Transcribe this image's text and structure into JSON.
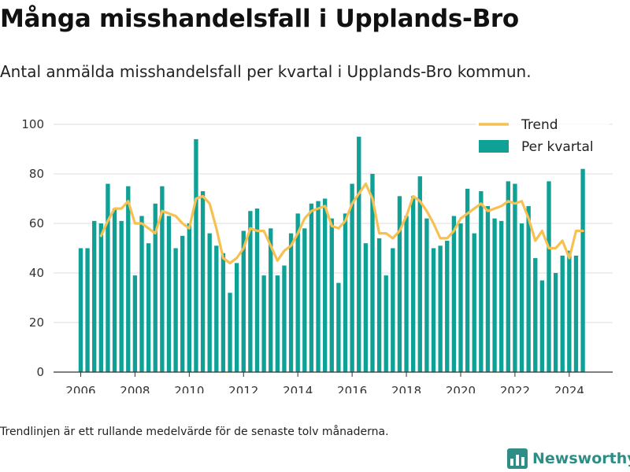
{
  "title": "Många misshandelsfall i Upplands-Bro",
  "subtitle": "Antal anmälda misshandelsfall per kvartal i Upplands-Bro kommun.",
  "footnote": "Trendlinjen är ett rullande medelvärde för de senaste tolv månaderna.",
  "brand": {
    "name": "Newsworthy",
    "logo_icon": "bar-chart-logo-icon",
    "color": "#2e8e86"
  },
  "chart_data": {
    "type": "bar",
    "xlim": [
      2005.0,
      2025.6
    ],
    "ylim": [
      0,
      100
    ],
    "yticks": [
      0,
      20,
      40,
      60,
      80,
      100
    ],
    "xticks": [
      2006,
      2008,
      2010,
      2012,
      2014,
      2016,
      2018,
      2020,
      2022,
      2024
    ],
    "grid": true,
    "legend_position": "top-right",
    "colors": {
      "bar": "#0fa196",
      "trend": "#f6c152",
      "grid": "#dddddd",
      "axis": "#333333"
    },
    "x": [
      2006.0,
      2006.25,
      2006.5,
      2006.75,
      2007.0,
      2007.25,
      2007.5,
      2007.75,
      2008.0,
      2008.25,
      2008.5,
      2008.75,
      2009.0,
      2009.25,
      2009.5,
      2009.75,
      2010.0,
      2010.25,
      2010.5,
      2010.75,
      2011.0,
      2011.25,
      2011.5,
      2011.75,
      2012.0,
      2012.25,
      2012.5,
      2012.75,
      2013.0,
      2013.25,
      2013.5,
      2013.75,
      2014.0,
      2014.25,
      2014.5,
      2014.75,
      2015.0,
      2015.25,
      2015.5,
      2015.75,
      2016.0,
      2016.25,
      2016.5,
      2016.75,
      2017.0,
      2017.25,
      2017.5,
      2017.75,
      2018.0,
      2018.25,
      2018.5,
      2018.75,
      2019.0,
      2019.25,
      2019.5,
      2019.75,
      2020.0,
      2020.25,
      2020.5,
      2020.75,
      2021.0,
      2021.25,
      2021.5,
      2021.75,
      2022.0,
      2022.25,
      2022.5,
      2022.75,
      2023.0,
      2023.25,
      2023.5,
      2023.75,
      2024.0,
      2024.25,
      2024.5
    ],
    "series": [
      {
        "name": "Per kvartal",
        "kind": "bar",
        "values": [
          50,
          50,
          61,
          60,
          76,
          66,
          61,
          75,
          39,
          63,
          52,
          68,
          75,
          63,
          50,
          55,
          60,
          94,
          73,
          56,
          51,
          48,
          32,
          44,
          57,
          65,
          66,
          39,
          58,
          39,
          43,
          56,
          64,
          58,
          68,
          69,
          70,
          62,
          36,
          64,
          76,
          95,
          52,
          80,
          54,
          39,
          50,
          71,
          63,
          71,
          79,
          62,
          50,
          51,
          53,
          63,
          60,
          74,
          56,
          73,
          67,
          62,
          61,
          77,
          76,
          60,
          67,
          46,
          37,
          77,
          40,
          47,
          49,
          47,
          82
        ]
      },
      {
        "name": "Trend",
        "kind": "line",
        "values": [
          null,
          null,
          null,
          55,
          61,
          66,
          66,
          69,
          60,
          60,
          58,
          56,
          65,
          64,
          63,
          60,
          58,
          70,
          71,
          68,
          58,
          46,
          44,
          46,
          50,
          58,
          57,
          57,
          51,
          45,
          49,
          51,
          56,
          62,
          65,
          66,
          67,
          59,
          58,
          61,
          68,
          72,
          76,
          70,
          56,
          56,
          54,
          57,
          63,
          71,
          69,
          65,
          60,
          54,
          54,
          57,
          62,
          64,
          66,
          68,
          65,
          66,
          67,
          69,
          68,
          69,
          62,
          53,
          57,
          50,
          50,
          53,
          46,
          57,
          57
        ]
      }
    ]
  }
}
